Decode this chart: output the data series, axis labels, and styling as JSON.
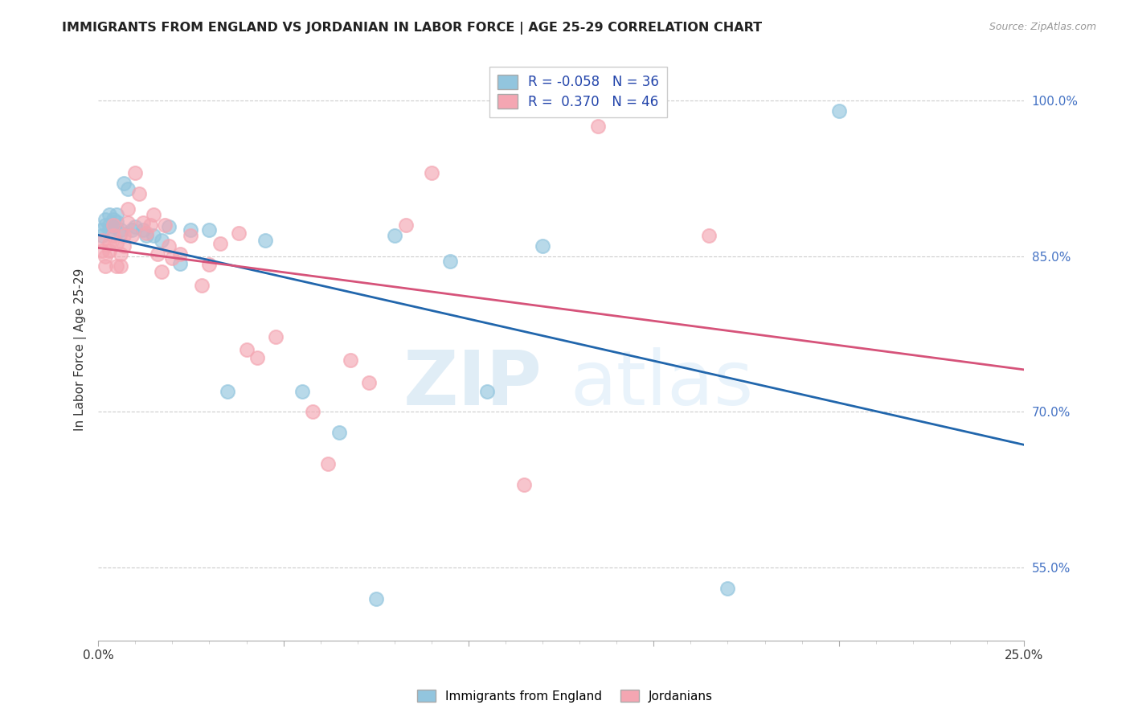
{
  "title": "IMMIGRANTS FROM ENGLAND VS JORDANIAN IN LABOR FORCE | AGE 25-29 CORRELATION CHART",
  "source": "Source: ZipAtlas.com",
  "ylabel": "In Labor Force | Age 25-29",
  "xmin": 0.0,
  "xmax": 0.25,
  "ymin": 0.48,
  "ymax": 1.04,
  "R_england": -0.058,
  "N_england": 36,
  "R_jordan": 0.37,
  "N_jordan": 46,
  "england_color": "#92c5de",
  "jordan_color": "#f4a6b2",
  "england_line_color": "#2166ac",
  "jordan_line_color": "#d6537a",
  "england_x": [
    0.001,
    0.001,
    0.002,
    0.002,
    0.003,
    0.003,
    0.003,
    0.004,
    0.004,
    0.005,
    0.005,
    0.006,
    0.006,
    0.007,
    0.008,
    0.009,
    0.01,
    0.012,
    0.013,
    0.015,
    0.017,
    0.019,
    0.022,
    0.025,
    0.03,
    0.035,
    0.045,
    0.055,
    0.065,
    0.075,
    0.08,
    0.095,
    0.105,
    0.12,
    0.17,
    0.2
  ],
  "england_y": [
    0.875,
    0.87,
    0.88,
    0.885,
    0.89,
    0.88,
    0.875,
    0.885,
    0.878,
    0.89,
    0.883,
    0.875,
    0.872,
    0.92,
    0.915,
    0.875,
    0.878,
    0.875,
    0.87,
    0.87,
    0.865,
    0.878,
    0.843,
    0.875,
    0.875,
    0.72,
    0.865,
    0.72,
    0.68,
    0.52,
    0.87,
    0.845,
    0.72,
    0.86,
    0.53,
    0.99
  ],
  "jordan_x": [
    0.001,
    0.001,
    0.002,
    0.002,
    0.003,
    0.003,
    0.004,
    0.004,
    0.005,
    0.005,
    0.006,
    0.006,
    0.007,
    0.007,
    0.008,
    0.008,
    0.009,
    0.01,
    0.011,
    0.012,
    0.013,
    0.014,
    0.015,
    0.016,
    0.017,
    0.018,
    0.019,
    0.02,
    0.022,
    0.025,
    0.028,
    0.03,
    0.033,
    0.038,
    0.04,
    0.043,
    0.048,
    0.058,
    0.062,
    0.068,
    0.073,
    0.083,
    0.09,
    0.115,
    0.135,
    0.165
  ],
  "jordan_y": [
    0.855,
    0.865,
    0.84,
    0.85,
    0.855,
    0.862,
    0.87,
    0.88,
    0.84,
    0.862,
    0.84,
    0.852,
    0.86,
    0.87,
    0.882,
    0.895,
    0.87,
    0.93,
    0.91,
    0.882,
    0.872,
    0.88,
    0.89,
    0.852,
    0.835,
    0.88,
    0.86,
    0.848,
    0.852,
    0.87,
    0.822,
    0.842,
    0.862,
    0.872,
    0.76,
    0.752,
    0.772,
    0.7,
    0.65,
    0.75,
    0.728,
    0.88,
    0.93,
    0.63,
    0.975,
    0.87
  ],
  "watermark_zip": "ZIP",
  "watermark_atlas": "atlas",
  "background_color": "#ffffff",
  "grid_color": "#cccccc",
  "tick_color_y": "#4472c4",
  "tick_color_x": "#333333"
}
